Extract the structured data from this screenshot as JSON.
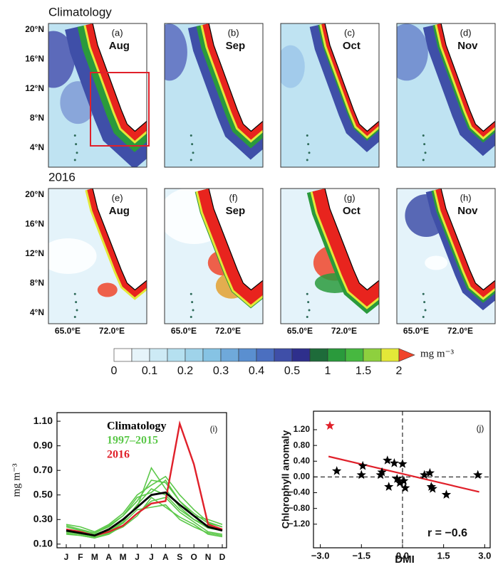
{
  "maps": {
    "rows": [
      {
        "title": "Climatology",
        "panels": [
          {
            "label": "(a)",
            "month": "Aug"
          },
          {
            "label": "(b)",
            "month": "Sep"
          },
          {
            "label": "(c)",
            "month": "Oct"
          },
          {
            "label": "(d)",
            "month": "Nov"
          }
        ]
      },
      {
        "title": "2016",
        "panels": [
          {
            "label": "(e)",
            "month": "Aug"
          },
          {
            "label": "(f)",
            "month": "Sep"
          },
          {
            "label": "(g)",
            "month": "Oct"
          },
          {
            "label": "(h)",
            "month": "Nov"
          }
        ]
      }
    ],
    "lat_ticks": [
      "20°N",
      "16°N",
      "12°N",
      "8°N",
      "4°N"
    ],
    "lon_ticks": [
      "65.0°E",
      "72.0°E"
    ]
  },
  "colorbar": {
    "unit": "mg m⁻³",
    "ticks": [
      0,
      0.1,
      0.2,
      0.3,
      0.4,
      0.5,
      1,
      1.5,
      2
    ],
    "colors": [
      "#ffffff",
      "#e6f4fa",
      "#cdeaf5",
      "#b5e0f0",
      "#9fd3ea",
      "#86c3e4",
      "#6fa9da",
      "#5a8fd0",
      "#4b6fc0",
      "#3f4fa8",
      "#2e2f8c",
      "#1e6b3a",
      "#2a9a3c",
      "#47b840",
      "#8ed03e",
      "#e3e838"
    ],
    "extend_color": "#f0452a"
  },
  "chart_data": [
    {
      "type": "line",
      "panel_label": "(i)",
      "ylabel": "mg m⁻³",
      "categories": [
        "J",
        "F",
        "M",
        "A",
        "M",
        "J",
        "J",
        "A",
        "S",
        "O",
        "N",
        "D"
      ],
      "ylim": [
        0.07,
        1.17
      ],
      "yticks": [
        {
          "value": 0.1,
          "label": "0.10"
        },
        {
          "value": 0.3,
          "label": "0.30"
        },
        {
          "value": 0.5,
          "label": "0.50"
        },
        {
          "value": 0.7,
          "label": "0.70"
        },
        {
          "value": 0.9,
          "label": "0.90"
        },
        {
          "value": 1.1,
          "label": "1.10"
        }
      ],
      "series": [
        {
          "name": "Climatology",
          "color": "#000000",
          "values": [
            0.21,
            0.19,
            0.17,
            0.22,
            0.3,
            0.4,
            0.5,
            0.52,
            0.42,
            0.33,
            0.24,
            0.21
          ]
        },
        {
          "name": "1997–2015",
          "color": "#5cc84a",
          "values": [
            [
              0.24,
              0.21,
              0.19,
              0.25,
              0.33,
              0.45,
              0.62,
              0.6,
              0.45,
              0.35,
              0.27,
              0.24
            ],
            [
              0.22,
              0.2,
              0.18,
              0.22,
              0.3,
              0.4,
              0.72,
              0.55,
              0.4,
              0.3,
              0.25,
              0.22
            ],
            [
              0.26,
              0.24,
              0.2,
              0.26,
              0.35,
              0.5,
              0.58,
              0.65,
              0.5,
              0.38,
              0.28,
              0.24
            ],
            [
              0.19,
              0.17,
              0.15,
              0.18,
              0.25,
              0.35,
              0.45,
              0.48,
              0.36,
              0.28,
              0.2,
              0.18
            ],
            [
              0.21,
              0.19,
              0.17,
              0.21,
              0.28,
              0.42,
              0.55,
              0.5,
              0.38,
              0.3,
              0.23,
              0.21
            ],
            [
              0.2,
              0.18,
              0.16,
              0.2,
              0.27,
              0.38,
              0.4,
              0.42,
              0.3,
              0.24,
              0.19,
              0.17
            ],
            [
              0.25,
              0.22,
              0.19,
              0.24,
              0.33,
              0.48,
              0.52,
              0.62,
              0.45,
              0.33,
              0.3,
              0.26
            ],
            [
              0.18,
              0.17,
              0.15,
              0.19,
              0.24,
              0.33,
              0.48,
              0.4,
              0.32,
              0.26,
              0.18,
              0.16
            ]
          ]
        },
        {
          "name": "2016",
          "color": "#e0202a",
          "values": [
            0.22,
            0.2,
            0.17,
            0.2,
            0.25,
            0.35,
            0.43,
            0.45,
            1.08,
            0.75,
            0.26,
            0.22
          ]
        }
      ]
    },
    {
      "type": "scatter",
      "panel_label": "(j)",
      "annotation": "r = −0.6",
      "xlabel": "DMI",
      "ylabel": "Chlorophyll anomaly",
      "xlim": [
        -3.25,
        3.2
      ],
      "xticks": [
        {
          "value": -3,
          "label": "−3.0"
        },
        {
          "value": -1.5,
          "label": "−1.5"
        },
        {
          "value": 0,
          "label": "0.0"
        },
        {
          "value": 1.5,
          "label": "1.5"
        },
        {
          "value": 3,
          "label": "3.0"
        }
      ],
      "ylim": [
        -1.8,
        1.67
      ],
      "yticks": [
        {
          "value": 1.2,
          "label": "1.20"
        },
        {
          "value": 0.8,
          "label": "0.80"
        },
        {
          "value": 0.4,
          "label": "0.40"
        },
        {
          "value": 0,
          "label": "0.00"
        },
        {
          "value": -0.4,
          "label": "−0.40"
        },
        {
          "value": -0.8,
          "label": "−0.80"
        },
        {
          "value": -1.2,
          "label": "−1.20"
        }
      ],
      "series": [
        {
          "color": "#000000",
          "x": [
            -2.4,
            -1.45,
            -1.5,
            -0.8,
            -0.75,
            -0.55,
            -0.5,
            -0.3,
            -0.2,
            -0.1,
            0.05,
            0.1,
            0.0,
            0.8,
            1.0,
            1.05,
            1.1,
            1.6,
            2.75
          ],
          "values": [
            0.15,
            0.28,
            0.05,
            0.05,
            0.12,
            0.42,
            -0.25,
            0.35,
            -0.05,
            -0.15,
            -0.1,
            -0.28,
            0.33,
            0.05,
            0.1,
            -0.25,
            -0.3,
            -0.45,
            0.05
          ]
        },
        {
          "color": "#e0202a",
          "x": [
            -2.65
          ],
          "values": [
            1.3
          ]
        }
      ],
      "fit": {
        "color": "#e0202a",
        "x": [
          -2.7,
          2.8
        ],
        "values": [
          0.52,
          -0.38
        ]
      }
    }
  ]
}
